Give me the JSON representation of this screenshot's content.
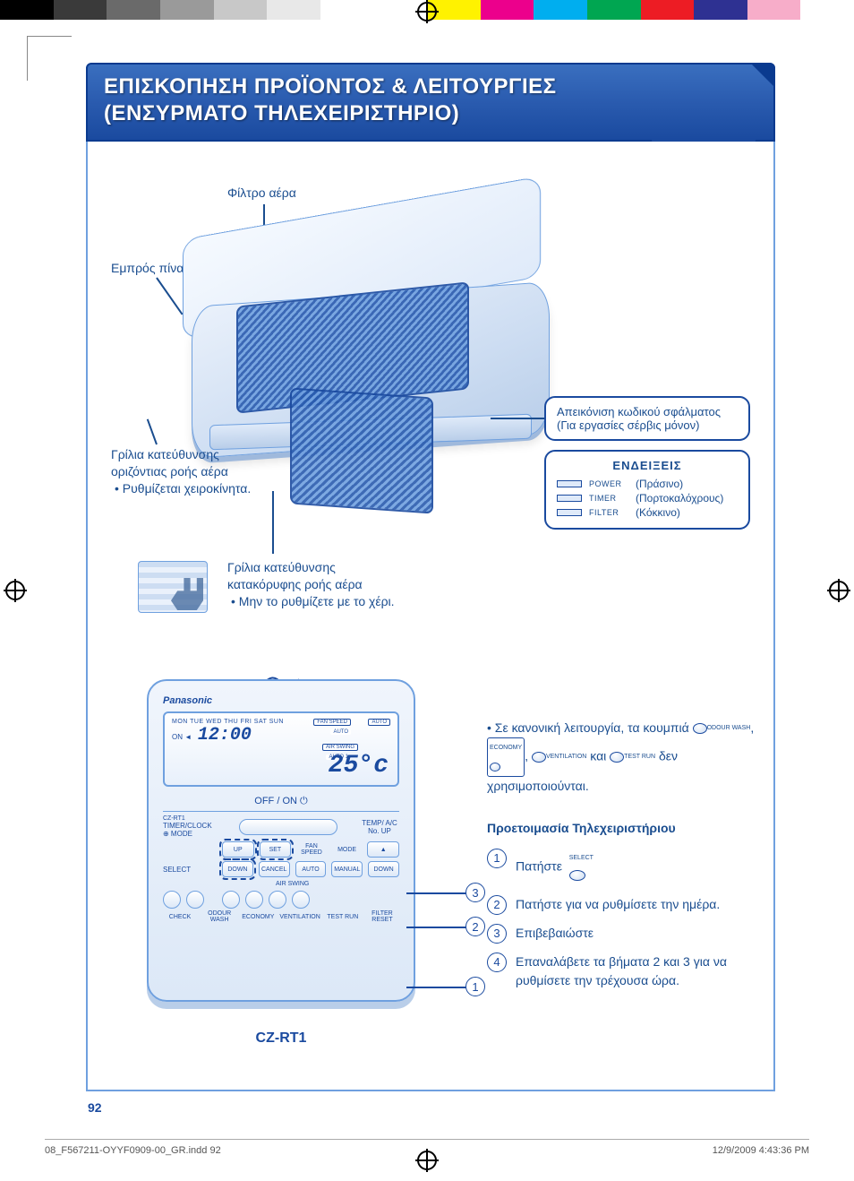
{
  "colorbar": [
    "#000000",
    "#3a3a3a",
    "#6a6a6a",
    "#9a9a9a",
    "#c8c8c8",
    "#e8e8e8",
    "#ffffff",
    "#ffffff",
    "#fff200",
    "#ec008c",
    "#00aeef",
    "#00a651",
    "#ed1c24",
    "#2e3192",
    "#f7adc9",
    "#ffffff"
  ],
  "header": {
    "line1": "ΕΠΙΣΚΟΠΗΣΗ ΠΡΟΪΟΝΤΟΣ & ΛΕΙΤΟΥΡΓΙΕΣ",
    "line2": "(ΕΝΣΥΡΜΑΤΟ ΤΗΛΕΧΕΙΡΙΣΤΗΡΙΟ)"
  },
  "labels": {
    "airFilter": "Φίλτρο αέρα",
    "frontPanel": "Εμπρός πίνακας",
    "horizGrille": "Γρίλια κατεύθυνσης οριζόντιας ροής αέρα",
    "horizGrilleBullet": "• Ρυθμίζεται χειροκίνητα.",
    "vertGrille": "Γρίλια κατεύθυνσης κατακόρυφης ροής αέρα",
    "vertGrilleBullet": "• Μην το ρυθμίζετε με το χέρι."
  },
  "errorBox": {
    "line1": "Απεικόνιση κωδικού σφάλματος",
    "line2": "(Για εργασίες σέρβις μόνον)"
  },
  "indicators": {
    "title": "ΕΝΔΕΙΞΕΙΣ",
    "rows": [
      {
        "name": "POWER",
        "desc": "(Πράσινο)"
      },
      {
        "name": "TIMER",
        "desc": "(Πορτοκαλόχρους)"
      },
      {
        "name": "FILTER",
        "desc": "(Κόκκινο)"
      }
    ]
  },
  "remote": {
    "brand": "Panasonic",
    "days": "MON TUE WED THU FRI SAT SUN",
    "on": "ON ◄",
    "time": "12:00",
    "temp": "25°c",
    "fanSpeedLbl": "FAN SPEED",
    "fanSpeedVal": "AUTO",
    "autoBox": "AUTO",
    "airSwingBox": "AIR SWING",
    "auto1": "AUTO 1",
    "offOn": "OFF / ON ⏻",
    "small": "CZ-RT1",
    "row1Labels": {
      "timerClock": "TIMER/CLOCK",
      "mode": "⊕ MODE"
    },
    "row2": {
      "up": "UP",
      "set": "SET",
      "fanSpeed": "FAN SPEED",
      "mode": "MODE",
      "temp": "TEMP/\nA/C No.\nUP"
    },
    "row3": {
      "select": "SELECT",
      "down": "DOWN",
      "cancel": "CANCEL",
      "auto": "AUTO",
      "manual": "MANUAL",
      "down2": "DOWN"
    },
    "airSwing": "AIR SWING",
    "row4": {
      "check": "CHECK",
      "odour": "ODOUR WASH",
      "economy": "ECONOMY",
      "vent": "VENTILATION",
      "test": "TEST RUN",
      "filter": "FILTER RESET"
    },
    "model": "CZ-RT1"
  },
  "rightNote": {
    "prefix": "• Σε κανονική λειτουργία, τα κουμπιά",
    "b1": "ODOUR WASH",
    "b2sup": "ECONOMY",
    "sep1": ",",
    "b3": "VENTILATION",
    "and": "και",
    "b4": "TEST RUN",
    "suffix": "δεν χρησιμοποιούνται."
  },
  "stepsTitle": "Προετοιμασία Τηλεχειριστήριου",
  "steps": [
    {
      "n": "1",
      "text": "Πατήστε",
      "btn": "SELECT"
    },
    {
      "n": "2",
      "text": "Πατήστε για να ρυθμίσετε την ημέρα."
    },
    {
      "n": "3",
      "text": "Επιβεβαιώστε"
    },
    {
      "n": "4",
      "text": "Επαναλάβετε τα βήματα 2 και 3 για να ρυθμίσετε την τρέχουσα ώρα."
    }
  ],
  "leadBadges": {
    "b1": "1",
    "b2": "2",
    "b3": "3"
  },
  "pageNumber": "92",
  "footer": {
    "left": "08_F567211-OYYF0909-00_GR.indd   92",
    "right": "12/9/2009   4:43:36 PM"
  }
}
